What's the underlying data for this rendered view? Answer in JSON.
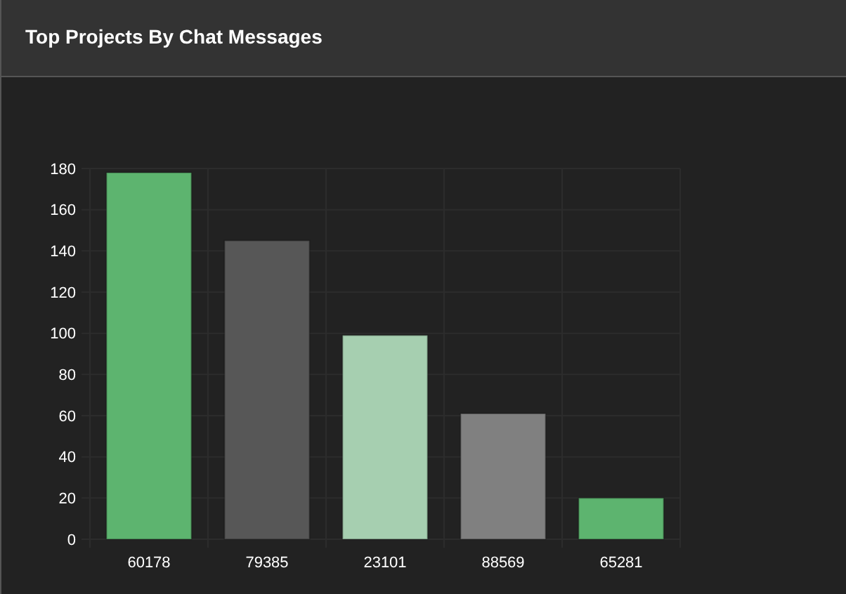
{
  "chart_data": {
    "type": "bar",
    "title": "Top Projects By Chat Messages",
    "categories": [
      "60178",
      "79385",
      "23101",
      "88569",
      "65281"
    ],
    "values": [
      178,
      145,
      99,
      61,
      20
    ],
    "colors": [
      "#5db46f",
      "#575757",
      "#a6cfb0",
      "#808080",
      "#5db46f"
    ],
    "ylim": [
      0,
      180
    ],
    "yticks": [
      0,
      20,
      40,
      60,
      80,
      100,
      120,
      140,
      160,
      180
    ],
    "grid": true
  }
}
